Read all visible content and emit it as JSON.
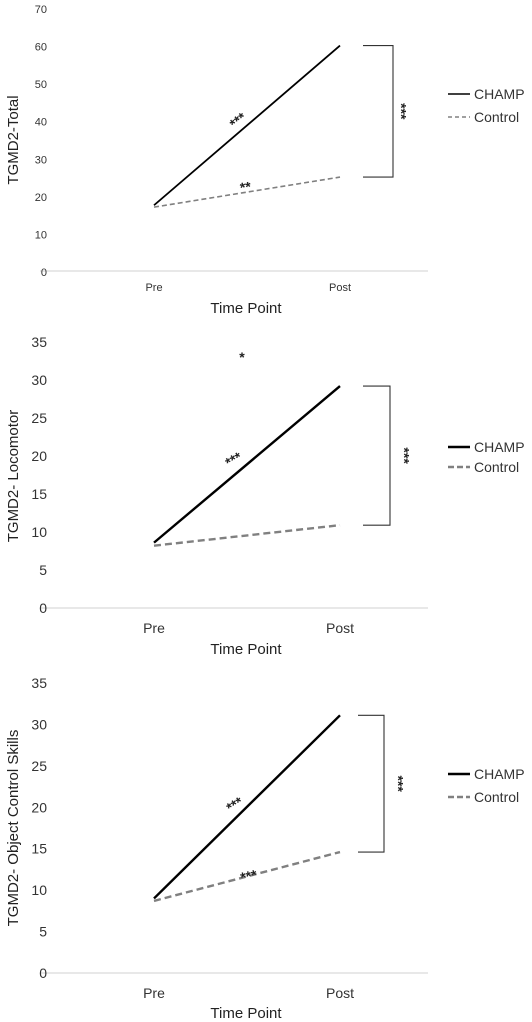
{
  "chart_data": [
    {
      "type": "line",
      "categories": [
        "Pre",
        "Post"
      ],
      "ylabel": "TGMD2-Total",
      "xlabel": "Time Point",
      "ylim": [
        0,
        70
      ],
      "yticks": [
        "0",
        "10",
        "20",
        "30",
        "40",
        "50",
        "60",
        "70"
      ],
      "series": [
        {
          "name": "CHAMP",
          "values": [
            17.5,
            60
          ],
          "color": "#000000",
          "dash": false
        },
        {
          "name": "Control",
          "values": [
            17,
            25
          ],
          "color": "#808080",
          "dash": true
        }
      ],
      "annotations": {
        "champ": "***",
        "control": "**",
        "between": "***"
      },
      "grid": false,
      "legend": "right"
    },
    {
      "type": "line",
      "categories": [
        "Pre",
        "Post"
      ],
      "ylabel": "TGMD2- Locomotor",
      "xlabel": "Time Point",
      "ylim": [
        0,
        35
      ],
      "yticks": [
        "0",
        "5",
        "10",
        "15",
        "20",
        "25",
        "30",
        "35"
      ],
      "series": [
        {
          "name": "CHAMP",
          "values": [
            8.6,
            29.2
          ],
          "color": "#000000",
          "dash": false
        },
        {
          "name": "Control",
          "values": [
            8.2,
            10.9
          ],
          "color": "#808080",
          "dash": true
        }
      ],
      "annotations": {
        "champ": "***",
        "control": "*",
        "between": "***"
      },
      "grid": false,
      "legend": "right"
    },
    {
      "type": "line",
      "categories": [
        "Pre",
        "Post"
      ],
      "ylabel": "TGMD2- Object Control Skills",
      "xlabel": "Time Point",
      "ylim": [
        0,
        35
      ],
      "yticks": [
        "0",
        "5",
        "10",
        "15",
        "20",
        "25",
        "30",
        "35"
      ],
      "series": [
        {
          "name": "CHAMP",
          "values": [
            9,
            31.1
          ],
          "color": "#000000",
          "dash": false
        },
        {
          "name": "Control",
          "values": [
            8.7,
            14.6
          ],
          "color": "#808080",
          "dash": true
        }
      ],
      "annotations": {
        "champ": "***",
        "control": "***",
        "between": "***"
      },
      "grid": false,
      "legend": "right"
    }
  ]
}
